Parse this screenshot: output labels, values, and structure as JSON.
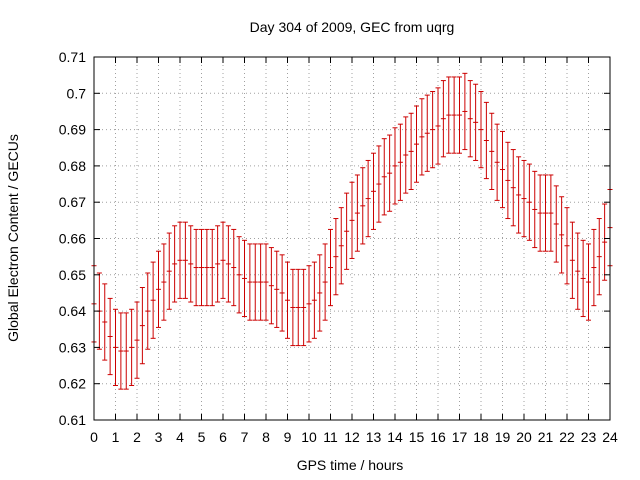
{
  "chart_data": {
    "type": "errorbar",
    "title": "Day 304 of 2009, GEC from uqrg",
    "xlabel": "GPS time / hours",
    "ylabel": "Global Electron Content / GECUs",
    "xlim": [
      0,
      24
    ],
    "ylim": [
      0.61,
      0.71
    ],
    "xticks": [
      0,
      1,
      2,
      3,
      4,
      5,
      6,
      7,
      8,
      9,
      10,
      11,
      12,
      13,
      14,
      15,
      16,
      17,
      18,
      19,
      20,
      21,
      22,
      23,
      24
    ],
    "yticks": [
      0.61,
      0.62,
      0.63,
      0.64,
      0.65,
      0.66,
      0.67,
      0.68,
      0.69,
      0.7,
      0.71
    ],
    "xtick_labels": [
      "0",
      "1",
      "2",
      "3",
      "4",
      "5",
      "6",
      "7",
      "8",
      "9",
      "10",
      "11",
      "12",
      "13",
      "14",
      "15",
      "16",
      "17",
      "18",
      "19",
      "20",
      "21",
      "22",
      "23",
      "24"
    ],
    "ytick_labels": [
      "0.61",
      "0.62",
      "0.63",
      "0.64",
      "0.65",
      "0.66",
      "0.67",
      "0.68",
      "0.69",
      "0.7",
      "0.71"
    ],
    "grid": true,
    "series_color": "#cc0000",
    "error_half_width": 0.0105,
    "x": [
      0,
      0.25,
      0.5,
      0.75,
      1,
      1.25,
      1.5,
      1.75,
      2,
      2.25,
      2.5,
      2.75,
      3,
      3.25,
      3.5,
      3.75,
      4,
      4.25,
      4.5,
      4.75,
      5,
      5.25,
      5.5,
      5.75,
      6,
      6.25,
      6.5,
      6.75,
      7,
      7.25,
      7.5,
      7.75,
      8,
      8.25,
      8.5,
      8.75,
      9,
      9.25,
      9.5,
      9.75,
      10,
      10.25,
      10.5,
      10.75,
      11,
      11.25,
      11.5,
      11.75,
      12,
      12.25,
      12.5,
      12.75,
      13,
      13.25,
      13.5,
      13.75,
      14,
      14.25,
      14.5,
      14.75,
      15,
      15.25,
      15.5,
      15.75,
      16,
      16.25,
      16.5,
      16.75,
      17,
      17.25,
      17.5,
      17.75,
      18,
      18.25,
      18.5,
      18.75,
      19,
      19.25,
      19.5,
      19.75,
      20,
      20.25,
      20.5,
      20.75,
      21,
      21.25,
      21.5,
      21.75,
      22,
      22.25,
      22.5,
      22.75,
      23,
      23.25,
      23.5,
      23.75,
      24
    ],
    "y": [
      0.642,
      0.64,
      0.637,
      0.633,
      0.63,
      0.629,
      0.629,
      0.63,
      0.632,
      0.636,
      0.64,
      0.643,
      0.646,
      0.648,
      0.651,
      0.653,
      0.654,
      0.654,
      0.653,
      0.652,
      0.652,
      0.652,
      0.652,
      0.653,
      0.654,
      0.653,
      0.652,
      0.65,
      0.649,
      0.648,
      0.648,
      0.648,
      0.648,
      0.647,
      0.646,
      0.645,
      0.643,
      0.641,
      0.641,
      0.641,
      0.642,
      0.643,
      0.645,
      0.648,
      0.652,
      0.655,
      0.658,
      0.662,
      0.665,
      0.667,
      0.669,
      0.671,
      0.673,
      0.675,
      0.677,
      0.678,
      0.68,
      0.681,
      0.683,
      0.684,
      0.686,
      0.688,
      0.689,
      0.69,
      0.691,
      0.693,
      0.694,
      0.694,
      0.694,
      0.695,
      0.693,
      0.692,
      0.69,
      0.687,
      0.684,
      0.681,
      0.679,
      0.676,
      0.674,
      0.672,
      0.671,
      0.67,
      0.668,
      0.667,
      0.667,
      0.667,
      0.664,
      0.661,
      0.658,
      0.654,
      0.651,
      0.649,
      0.648,
      0.652,
      0.655,
      0.659,
      0.663
    ]
  }
}
